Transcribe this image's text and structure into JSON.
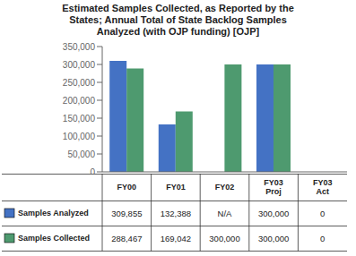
{
  "chart_data": {
    "type": "bar",
    "title": "Estimated Samples Collected, as Reported by the\nStates; Annual Total of State Backlog Samples\nAnalyzed (with OJP funding) [OJP]",
    "categories": [
      "FY00",
      "FY01",
      "FY02",
      "FY03\nProj",
      "FY03\nAct"
    ],
    "series": [
      {
        "name": "Samples Analyzed",
        "color": "#4472C4",
        "values": [
          309855,
          132388,
          0,
          300000,
          0
        ],
        "value_labels": [
          "309,855",
          "132,388",
          "N/A",
          "300,000",
          "0"
        ]
      },
      {
        "name": "Samples Collected",
        "color": "#4E9A6F",
        "values": [
          288467,
          169042,
          300000,
          300000,
          0
        ],
        "value_labels": [
          "288,467",
          "169,042",
          "300,000",
          "300,000",
          "0"
        ]
      }
    ],
    "ylim": [
      0,
      350000
    ],
    "yticks": [
      0,
      {
        "value": 50000,
        "label": "50,000"
      },
      {
        "value": 100000,
        "label": "100,000"
      },
      {
        "value": 150000,
        "label": "150,000"
      },
      {
        "value": 200000,
        "label": "200,000"
      },
      {
        "value": 250000,
        "label": "250,000"
      },
      {
        "value": 300000,
        "label": "300,000"
      },
      {
        "value": 350000,
        "label": "350,000"
      }
    ],
    "grid": false
  }
}
